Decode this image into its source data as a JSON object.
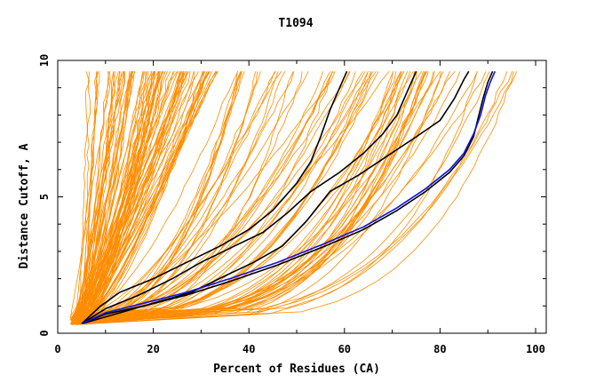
{
  "chart_data": {
    "type": "line",
    "title": "T1094",
    "xlabel": "Percent of Residues (CA)",
    "ylabel": "Distance Cutoff, A",
    "xlim": [
      0,
      101
    ],
    "ylim": [
      0,
      10
    ],
    "x_ticks": [
      "0",
      "20",
      "40",
      "60",
      "80",
      "100"
    ],
    "y_ticks": [
      "0",
      "5",
      "10"
    ],
    "grid": false,
    "colors": {
      "bundle": "#ff8c00",
      "black": "#000000",
      "blue": "#1010e0"
    },
    "highlight_series": [
      {
        "x": [
          5,
          9,
          13,
          20,
          27,
          34,
          40,
          45,
          50,
          53,
          55,
          57,
          59,
          60.5
        ],
        "y": [
          0.35,
          1.0,
          1.5,
          2.0,
          2.6,
          3.2,
          3.8,
          4.5,
          5.5,
          6.3,
          7.2,
          8.2,
          9.0,
          9.6
        ]
      },
      {
        "x": [
          5,
          10,
          17,
          24,
          30,
          37,
          43,
          48,
          53,
          59,
          64,
          68,
          71,
          73,
          75
        ],
        "y": [
          0.35,
          0.9,
          1.4,
          2.0,
          2.6,
          3.2,
          3.7,
          4.4,
          5.2,
          5.9,
          6.6,
          7.3,
          8.0,
          8.8,
          9.6
        ]
      },
      {
        "x": [
          5,
          12,
          20,
          28,
          35,
          41,
          47,
          52,
          57,
          63,
          69,
          75,
          80,
          83,
          85,
          86
        ],
        "y": [
          0.35,
          0.7,
          1.1,
          1.5,
          2.1,
          2.6,
          3.2,
          4.1,
          5.2,
          5.8,
          6.5,
          7.2,
          7.8,
          8.6,
          9.3,
          9.6
        ]
      },
      {
        "x": [
          5,
          10,
          18,
          27,
          36,
          46,
          56,
          64,
          71,
          77,
          82,
          85,
          87,
          88,
          89,
          90,
          91
        ],
        "y": [
          0.35,
          0.7,
          1.0,
          1.4,
          1.9,
          2.5,
          3.2,
          3.8,
          4.5,
          5.2,
          5.9,
          6.5,
          7.2,
          7.9,
          8.6,
          9.2,
          9.6
        ]
      }
    ],
    "blue_series": {
      "x": [
        5,
        10,
        18,
        27,
        36,
        46,
        56,
        64,
        71,
        77,
        82,
        85,
        87,
        88.5,
        89.5,
        90.5,
        91.5
      ],
      "y": [
        0.35,
        0.75,
        1.1,
        1.5,
        2.0,
        2.6,
        3.3,
        3.9,
        4.6,
        5.3,
        6.0,
        6.6,
        7.3,
        8.0,
        8.7,
        9.2,
        9.6
      ]
    },
    "bundle_summary": {
      "count": 170,
      "x_at_top_range": [
        6,
        98
      ],
      "y_top": 9.6,
      "y_bottom": 0.3
    }
  }
}
